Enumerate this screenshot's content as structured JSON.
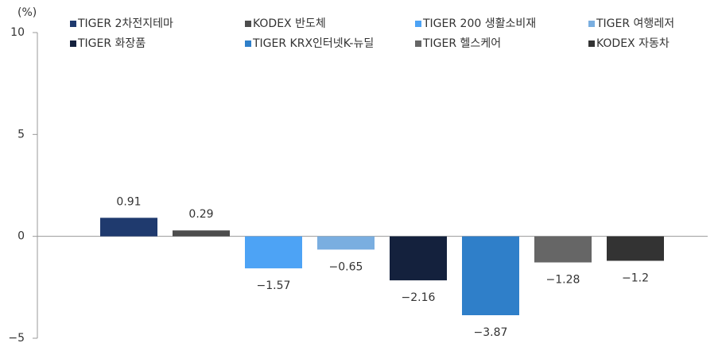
{
  "chart_data": {
    "type": "bar",
    "y_label": "(%)",
    "ylim": [
      -5,
      10
    ],
    "yticks": [
      {
        "value": -5,
        "label": "−5"
      },
      0,
      5,
      10
    ],
    "series": [
      {
        "name": "TIGER 2차전지테마",
        "color": "#1f3a6e",
        "values": [
          0.91
        ]
      },
      {
        "name": "KODEX 반도체",
        "color": "#4d4d4d",
        "values": [
          0.29
        ]
      },
      {
        "name": "TIGER 200 생활소비재",
        "color": "#4da3f5",
        "values": [
          -1.57
        ],
        "value_labels": [
          "−1.57"
        ]
      },
      {
        "name": "TIGER 여행레저",
        "color": "#7aaee0",
        "values": [
          -0.65
        ],
        "value_labels": [
          "−0.65"
        ]
      },
      {
        "name": "TIGER 화장품",
        "color": "#14213d",
        "values": [
          -2.16
        ],
        "value_labels": [
          "−2.16"
        ]
      },
      {
        "name": "TIGER KRX인터넷K-뉴딜",
        "color": "#2f7fc9",
        "values": [
          -3.87
        ],
        "value_labels": [
          "−3.87"
        ]
      },
      {
        "name": "TIGER 헬스케어",
        "color": "#666666",
        "values": [
          -1.28
        ],
        "value_labels": [
          "−1.28"
        ]
      },
      {
        "name": "KODEX 자동차",
        "color": "#333333",
        "values": [
          -1.2
        ],
        "value_labels": [
          "−1.2"
        ]
      }
    ]
  }
}
